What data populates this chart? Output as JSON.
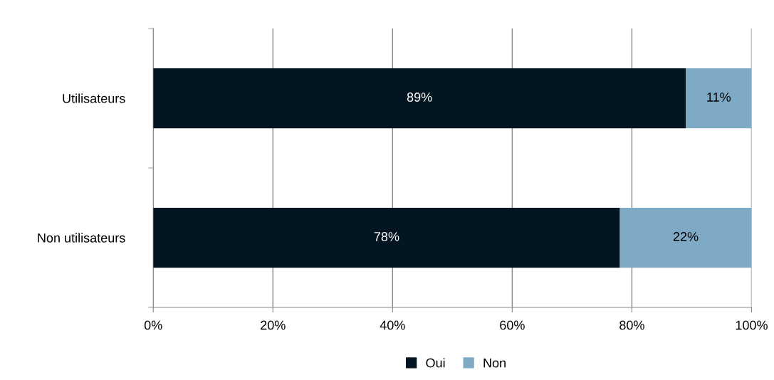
{
  "chart_data": {
    "type": "bar",
    "orientation": "horizontal",
    "stacked": true,
    "categories": [
      "Utilisateurs",
      "Non utilisateurs"
    ],
    "series": [
      {
        "name": "Oui",
        "color": "#041522",
        "values": [
          89,
          78
        ],
        "value_labels": [
          "89%",
          "78%"
        ]
      },
      {
        "name": "Non",
        "color": "#7faac6",
        "values": [
          11,
          22
        ],
        "value_labels": [
          "11%",
          "22%"
        ]
      }
    ],
    "xlim": [
      0,
      100
    ],
    "xticks": [
      {
        "value": 0,
        "label": "0%"
      },
      {
        "value": 20,
        "label": "20%"
      },
      {
        "value": 40,
        "label": "40%"
      },
      {
        "value": 60,
        "label": "60%"
      },
      {
        "value": 80,
        "label": "80%"
      },
      {
        "value": 100,
        "label": "100%"
      }
    ],
    "grid": "x",
    "legend": "bottom"
  }
}
